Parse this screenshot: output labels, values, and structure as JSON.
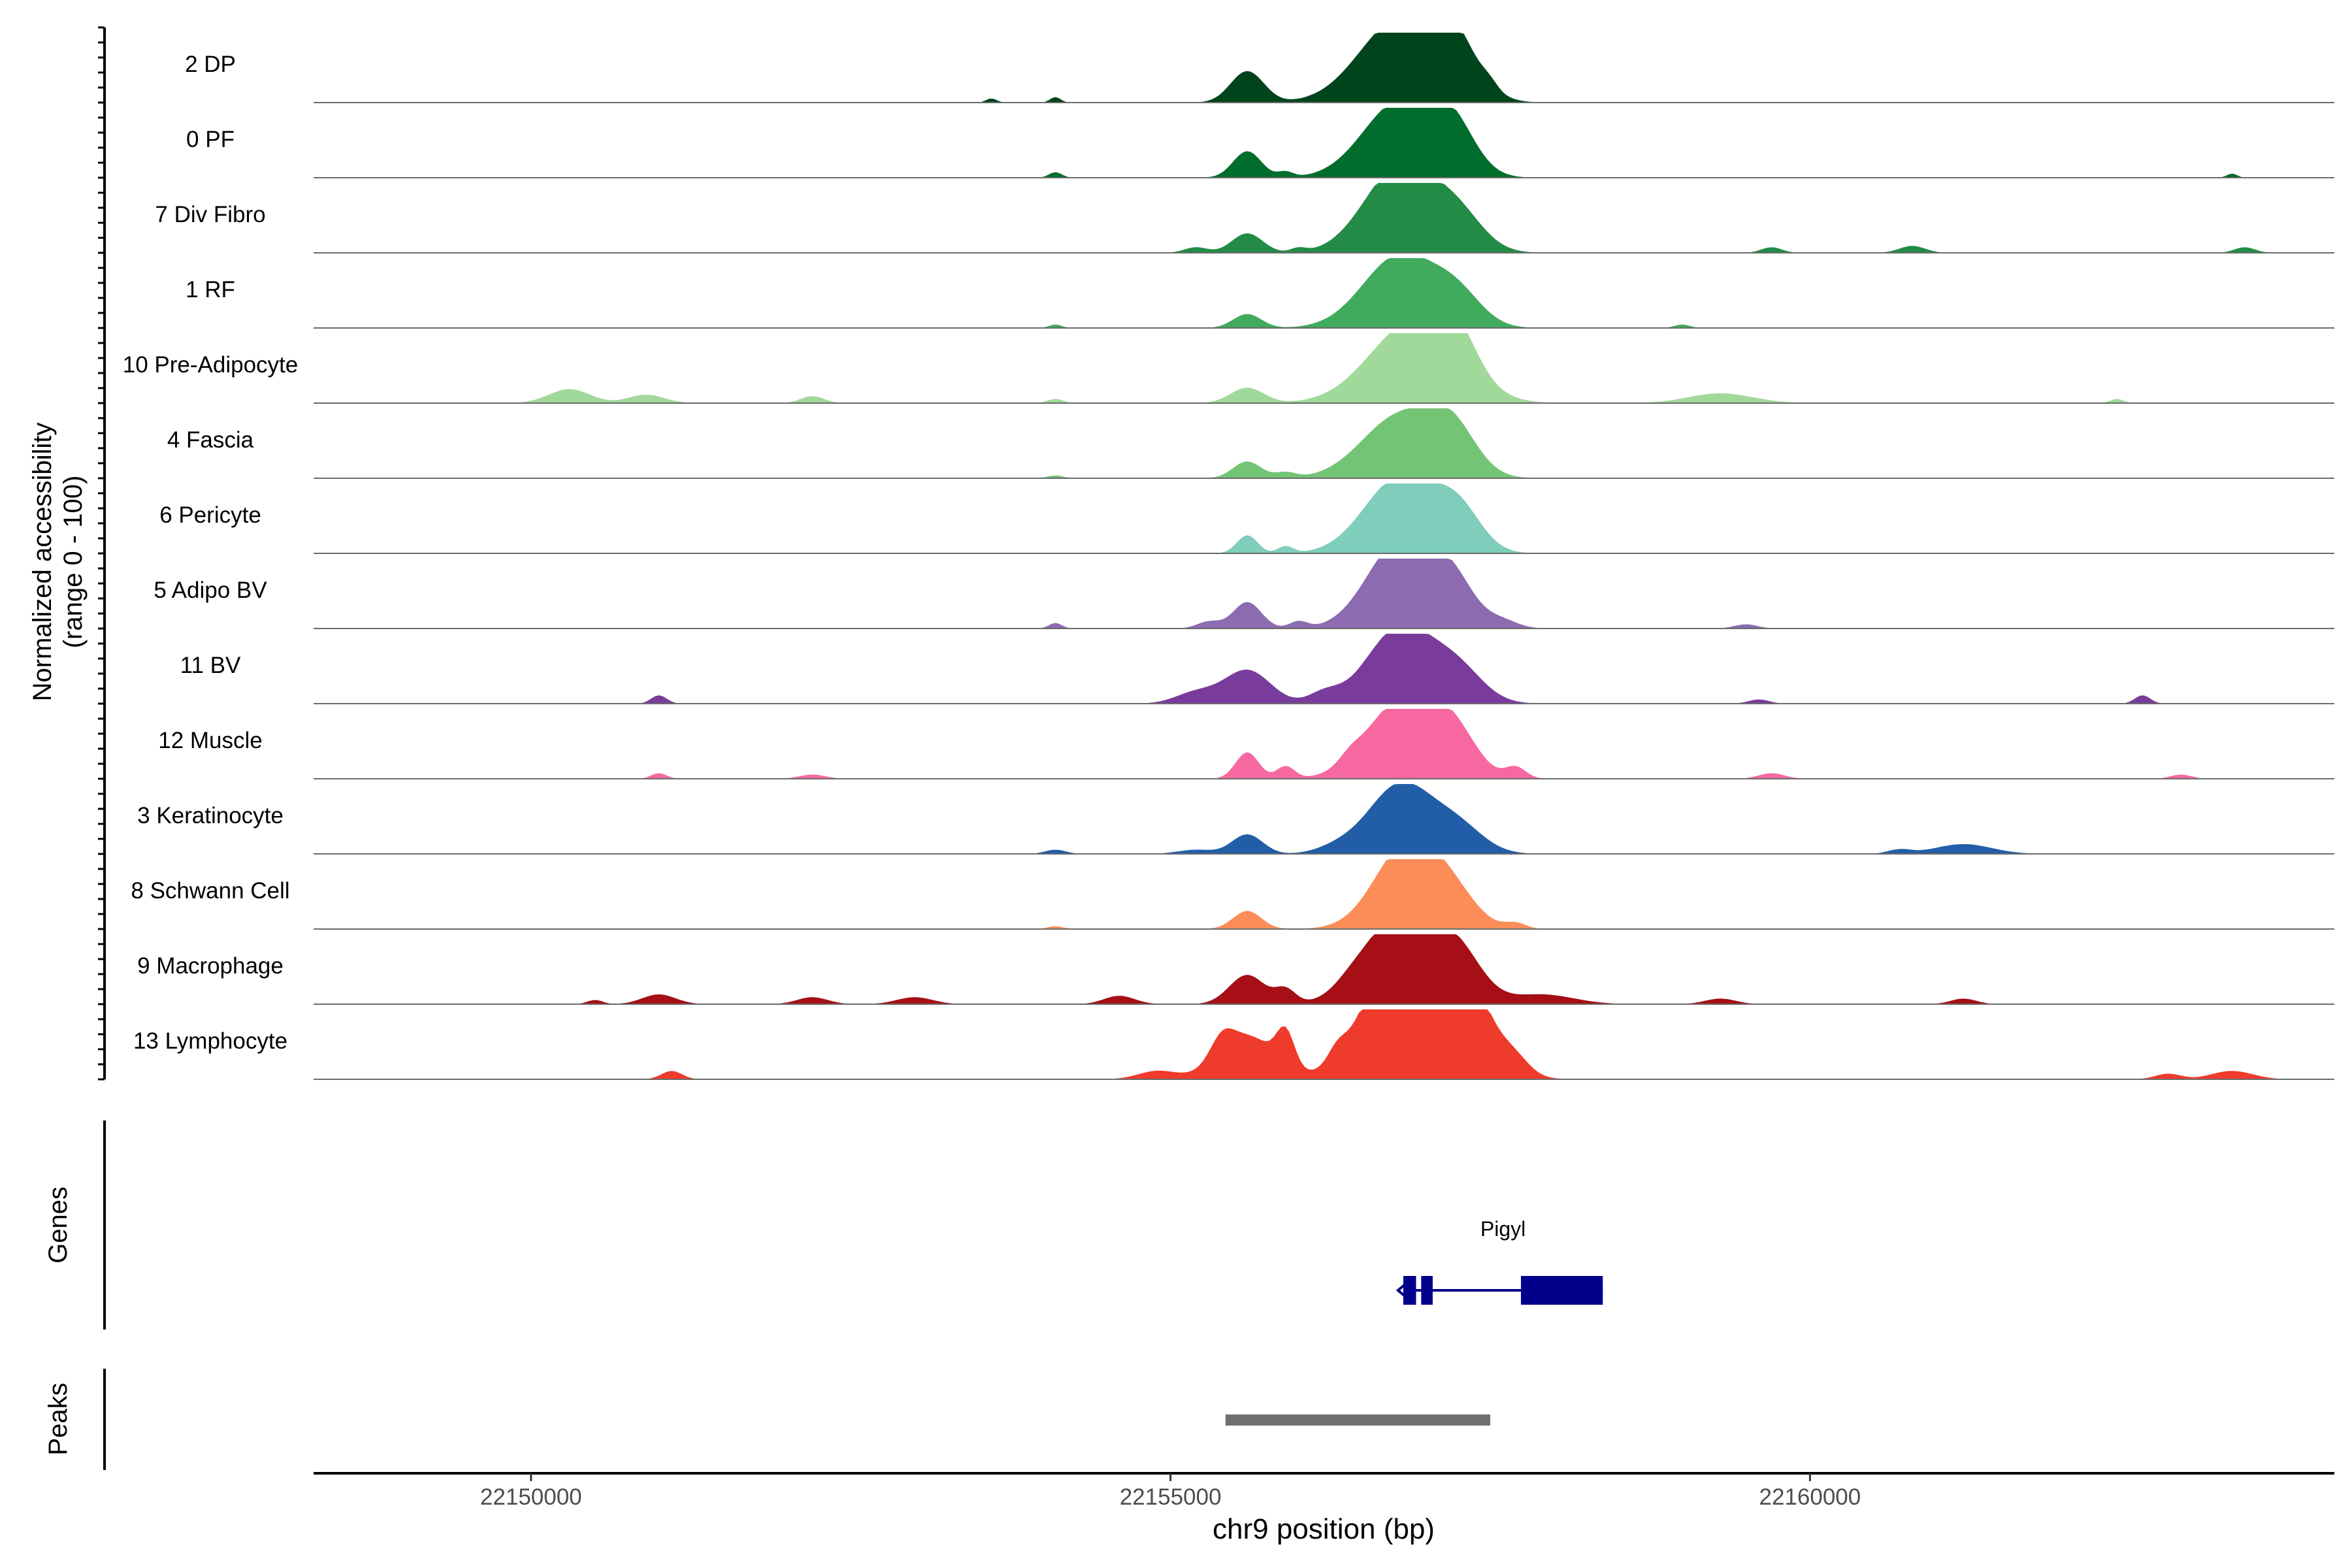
{
  "chart_data": {
    "type": "area",
    "ylabel_line1": "Normalized accessibility",
    "ylabel_line2": "(range 0 - 100)",
    "xlabel": "chr9 position (bp)",
    "xlim": [
      22148300,
      22164100
    ],
    "ylim": [
      0,
      100
    ],
    "x_ticks": [
      22150000,
      22155000,
      22160000
    ],
    "x_tick_labels": [
      "22150000",
      "22155000",
      "22160000"
    ],
    "genes_label": "Genes",
    "peaks_label": "Peaks",
    "series": [
      {
        "name": "2 DP",
        "color": "#00441b",
        "peaks": [
          [
            22155600,
            45,
            130
          ],
          [
            22156800,
            120,
            320
          ],
          [
            22157200,
            70,
            190
          ],
          [
            22153600,
            6,
            40
          ],
          [
            22154100,
            8,
            40
          ],
          [
            22157500,
            8,
            60
          ]
        ]
      },
      {
        "name": "0 PF",
        "color": "#006d2c",
        "peaks": [
          [
            22155600,
            38,
            110
          ],
          [
            22156800,
            110,
            290
          ],
          [
            22157200,
            62,
            180
          ],
          [
            22154100,
            8,
            50
          ],
          [
            22155900,
            8,
            60
          ],
          [
            22163300,
            6,
            40
          ]
        ]
      },
      {
        "name": "7 Div Fibro",
        "color": "#238b45",
        "peaks": [
          [
            22155600,
            28,
            120
          ],
          [
            22156800,
            125,
            280
          ],
          [
            22157250,
            45,
            200
          ],
          [
            22155200,
            8,
            90
          ],
          [
            22156000,
            6,
            60
          ],
          [
            22159700,
            8,
            80
          ],
          [
            22160800,
            10,
            100
          ],
          [
            22163400,
            8,
            80
          ]
        ]
      },
      {
        "name": "1 RF",
        "color": "#41ab5d",
        "peaks": [
          [
            22155600,
            20,
            110
          ],
          [
            22156800,
            105,
            290
          ],
          [
            22157250,
            38,
            190
          ],
          [
            22154100,
            5,
            50
          ],
          [
            22159000,
            5,
            60
          ]
        ]
      },
      {
        "name": "10 Pre-Adipocyte",
        "color": "#a1d99b",
        "peaks": [
          [
            22150300,
            20,
            160
          ],
          [
            22150900,
            12,
            140
          ],
          [
            22152200,
            10,
            90
          ],
          [
            22155600,
            22,
            130
          ],
          [
            22156900,
            115,
            340
          ],
          [
            22157200,
            60,
            180
          ],
          [
            22154100,
            6,
            60
          ],
          [
            22159300,
            14,
            250
          ],
          [
            22162400,
            6,
            50
          ]
        ]
      },
      {
        "name": "4 Fascia",
        "color": "#74c476",
        "peaks": [
          [
            22155600,
            24,
            110
          ],
          [
            22156800,
            90,
            300
          ],
          [
            22157200,
            60,
            190
          ],
          [
            22155900,
            8,
            80
          ],
          [
            22154100,
            4,
            60
          ]
        ]
      },
      {
        "name": "6 Pericyte",
        "color": "#7fcdbb",
        "peaks": [
          [
            22155600,
            26,
            80
          ],
          [
            22156800,
            110,
            280
          ],
          [
            22157250,
            55,
            180
          ],
          [
            22155900,
            10,
            60
          ]
        ]
      },
      {
        "name": "5 Adipo BV",
        "color": "#8c6bb1",
        "peaks": [
          [
            22155600,
            38,
            110
          ],
          [
            22156800,
            125,
            260
          ],
          [
            22157200,
            60,
            180
          ],
          [
            22155300,
            10,
            90
          ],
          [
            22156000,
            10,
            70
          ],
          [
            22154100,
            8,
            50
          ],
          [
            22159500,
            6,
            90
          ],
          [
            22157600,
            10,
            120
          ]
        ]
      },
      {
        "name": "11 BV",
        "color": "#7a3c9c",
        "peaks": [
          [
            22155600,
            48,
            180
          ],
          [
            22156800,
            110,
            260
          ],
          [
            22157250,
            44,
            200
          ],
          [
            22151000,
            12,
            60
          ],
          [
            22155200,
            16,
            160
          ],
          [
            22156200,
            14,
            120
          ],
          [
            22162600,
            12,
            60
          ],
          [
            22159600,
            6,
            80
          ]
        ]
      },
      {
        "name": "12 Muscle",
        "color": "#f768a1",
        "peaks": [
          [
            22155600,
            38,
            90
          ],
          [
            22156800,
            110,
            270
          ],
          [
            22157200,
            62,
            190
          ],
          [
            22155900,
            18,
            70
          ],
          [
            22156400,
            10,
            80
          ],
          [
            22157700,
            16,
            80
          ],
          [
            22151000,
            8,
            60
          ],
          [
            22152200,
            6,
            100
          ],
          [
            22159700,
            8,
            100
          ],
          [
            22162900,
            6,
            80
          ]
        ]
      },
      {
        "name": "3 Keratinocyte",
        "color": "#225ea8",
        "peaks": [
          [
            22155600,
            28,
            120
          ],
          [
            22156800,
            100,
            250
          ],
          [
            22157250,
            36,
            200
          ],
          [
            22155200,
            6,
            140
          ],
          [
            22156300,
            8,
            160
          ],
          [
            22161200,
            14,
            220
          ],
          [
            22154100,
            6,
            80
          ],
          [
            22160700,
            6,
            90
          ]
        ]
      },
      {
        "name": "8 Schwann Cell",
        "color": "#fc8d59",
        "peaks": [
          [
            22155600,
            26,
            110
          ],
          [
            22156850,
            120,
            250
          ],
          [
            22157200,
            40,
            200
          ],
          [
            22157700,
            8,
            80
          ],
          [
            22154100,
            4,
            60
          ]
        ]
      },
      {
        "name": "9 Macrophage",
        "color": "#a50f15",
        "peaks": [
          [
            22155600,
            42,
            140
          ],
          [
            22156800,
            130,
            280
          ],
          [
            22157250,
            62,
            190
          ],
          [
            22151000,
            14,
            130
          ],
          [
            22152200,
            10,
            120
          ],
          [
            22153000,
            10,
            140
          ],
          [
            22154600,
            12,
            120
          ],
          [
            22155900,
            20,
            80
          ],
          [
            22156400,
            8,
            120
          ],
          [
            22157900,
            14,
            250
          ],
          [
            22159300,
            8,
            120
          ],
          [
            22161200,
            8,
            100
          ],
          [
            22150500,
            6,
            60
          ]
        ]
      },
      {
        "name": "13 Lymphocyte",
        "color": "#ef3b2c",
        "peaks": [
          [
            22155600,
            62,
            220
          ],
          [
            22156800,
            180,
            280
          ],
          [
            22157200,
            165,
            260
          ],
          [
            22155900,
            50,
            70
          ],
          [
            22155400,
            28,
            90
          ],
          [
            22154900,
            12,
            150
          ],
          [
            22156300,
            18,
            70
          ],
          [
            22157700,
            16,
            110
          ],
          [
            22151100,
            12,
            80
          ],
          [
            22163300,
            12,
            160
          ],
          [
            22162800,
            8,
            100
          ]
        ]
      }
    ],
    "genes": [
      {
        "name": "Pigyl",
        "start": 22156820,
        "end": 22158380,
        "strand": "-",
        "exons": [
          [
            22156820,
            22156920
          ],
          [
            22156960,
            22157050
          ],
          [
            22157740,
            22158380
          ]
        ]
      }
    ],
    "peak_regions": [
      [
        22155430,
        22157500
      ]
    ]
  }
}
